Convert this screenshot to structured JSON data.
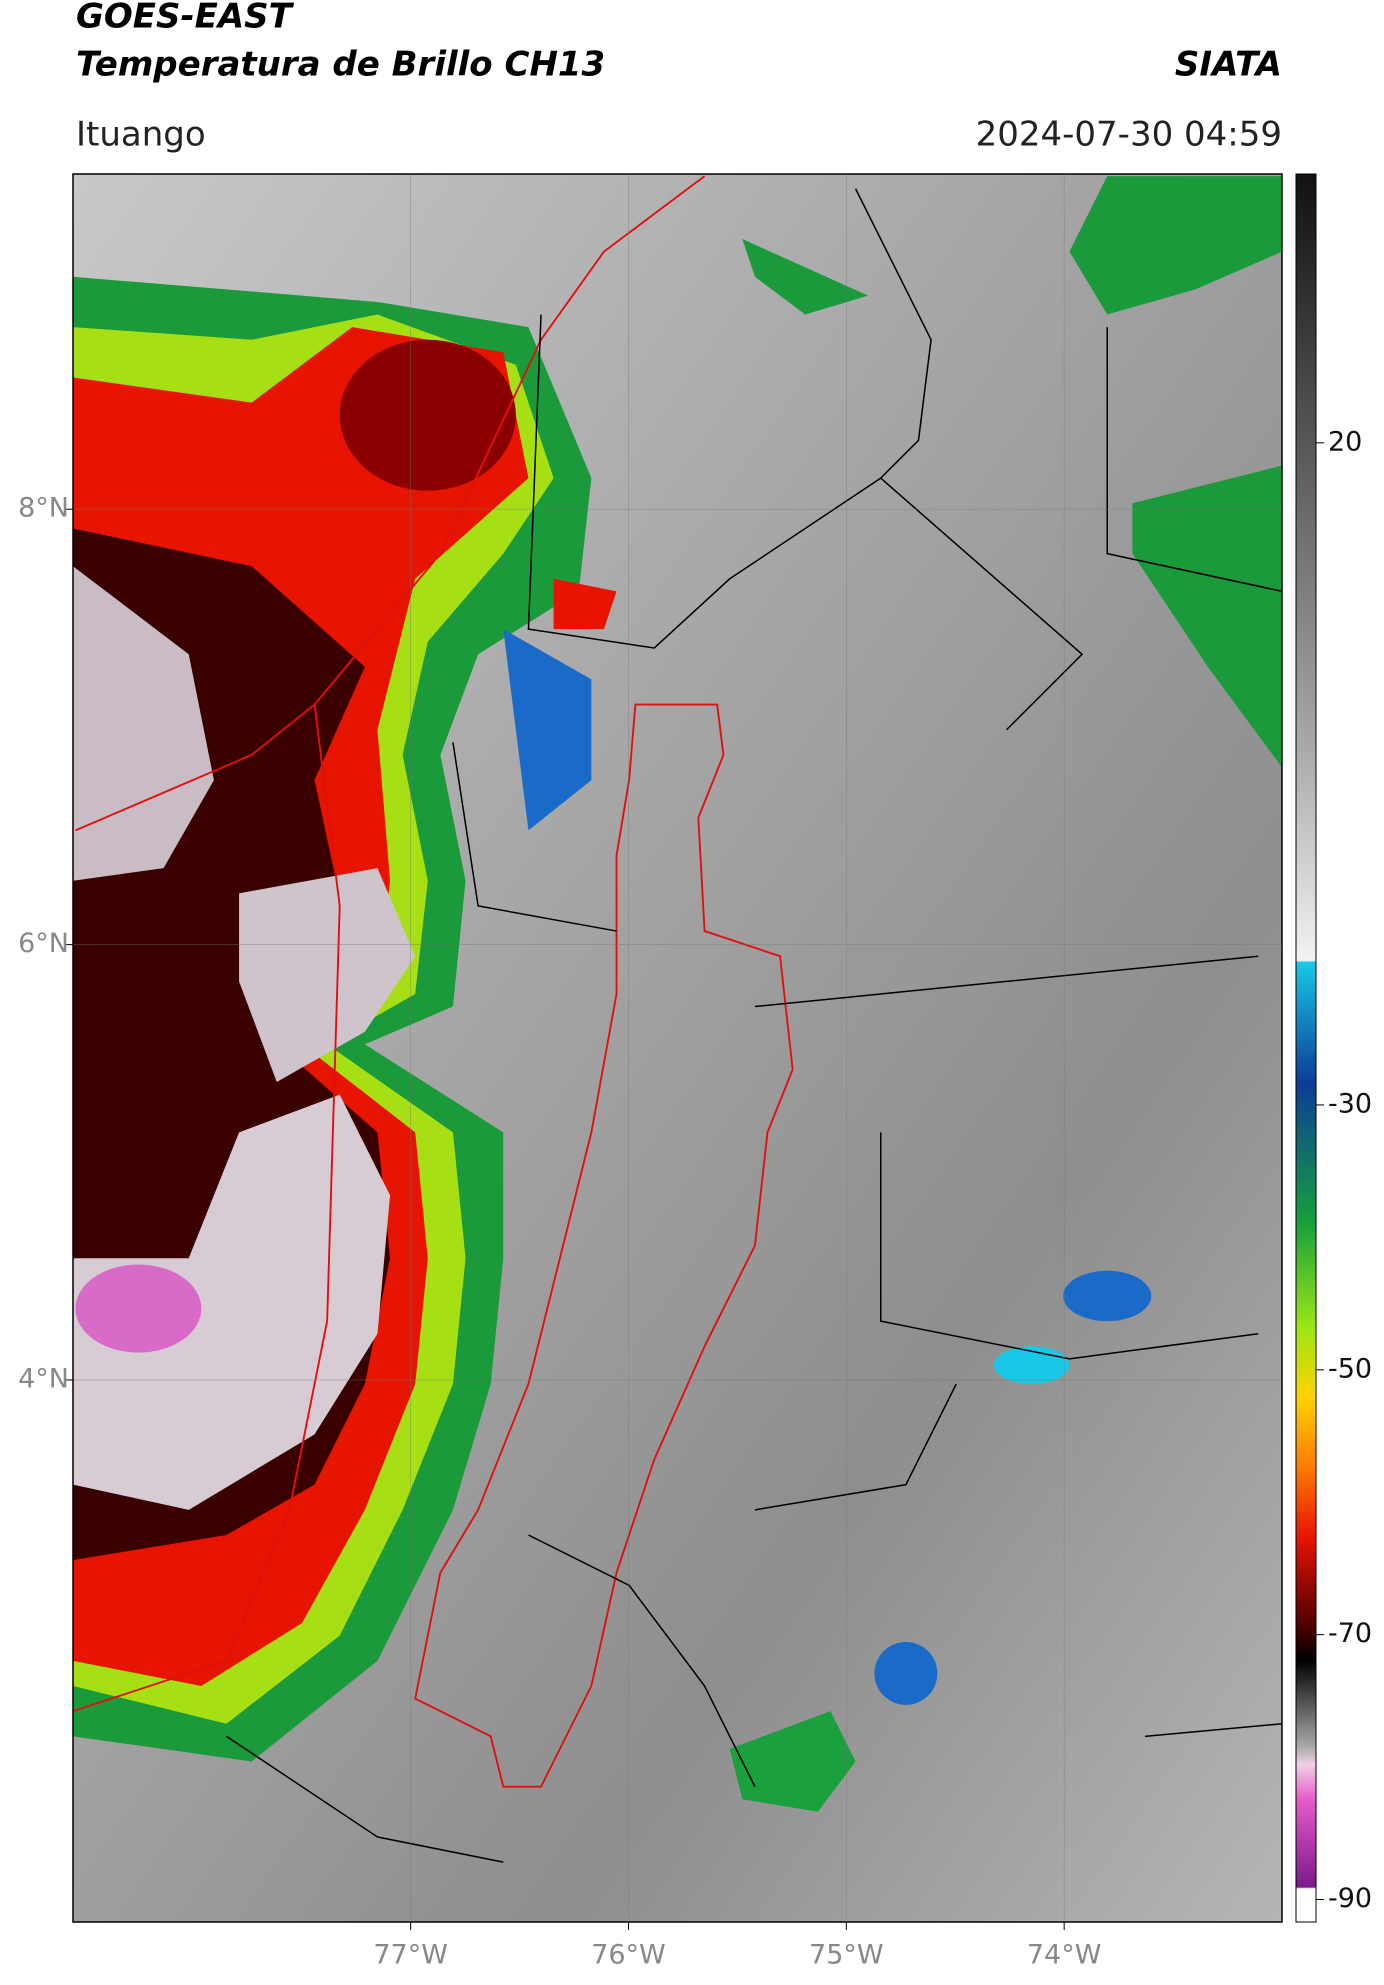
{
  "header": {
    "title_line1": "GOES-EAST",
    "title_line2": "Temperatura de Brillo CH13",
    "source": "SIATA",
    "location": "Ituango",
    "timestamp": "2024-07-30 04:59"
  },
  "map": {
    "type": "map",
    "xlim": [
      -78.55,
      -73.0
    ],
    "ylim": [
      1.51,
      9.54
    ],
    "xticks": [
      {
        "value": -77,
        "label": "77°W"
      },
      {
        "value": -76,
        "label": "76°W"
      },
      {
        "value": -75,
        "label": "75°W"
      },
      {
        "value": -74,
        "label": "74°W"
      }
    ],
    "yticks": [
      {
        "value": 8,
        "label": "8°N"
      },
      {
        "value": 6,
        "label": "6°N"
      },
      {
        "value": 4,
        "label": "4°N"
      }
    ],
    "grid": true
  },
  "colorbar": {
    "lim": [
      -91.7,
      40.3
    ],
    "ticks": [
      20,
      -30,
      -50,
      -70,
      -90
    ]
  }
}
